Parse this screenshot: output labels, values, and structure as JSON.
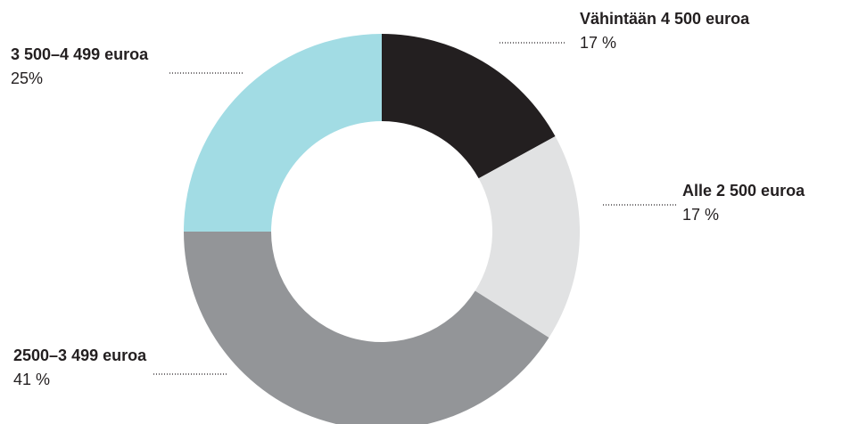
{
  "chart_data": {
    "type": "donut",
    "categories": [
      "Vähintään 4 500 euroa",
      "Alle 2 500 euroa",
      "2500–3 499 euroa",
      "3 500–4 499 euroa"
    ],
    "values": [
      17,
      17,
      41,
      25
    ],
    "value_labels": [
      "17 %",
      "17 %",
      "41 %",
      "25%"
    ],
    "colors": [
      "#231f20",
      "#e1e2e3",
      "#939598",
      "#a2dce4"
    ]
  }
}
